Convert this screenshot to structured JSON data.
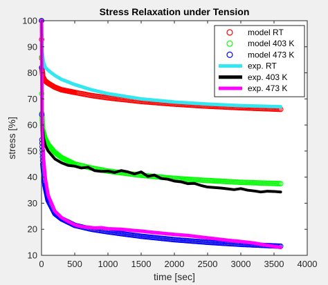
{
  "chart_data": {
    "type": "line",
    "title": "Stress Relaxation under Tension",
    "xlabel": "time [sec]",
    "ylabel": "stress [%]",
    "xlim": [
      0,
      4000
    ],
    "ylim": [
      10,
      100
    ],
    "xticks": [
      "0",
      "500",
      "1000",
      "1500",
      "2000",
      "2500",
      "3000",
      "3500",
      "4000"
    ],
    "yticks": [
      "10",
      "20",
      "30",
      "40",
      "50",
      "60",
      "70",
      "80",
      "90",
      "100"
    ],
    "grid": false,
    "legend_position": "top-right",
    "series": [
      {
        "name": "model RT",
        "style": "marker-o",
        "color": "#ff0000",
        "x": [
          0,
          5,
          20,
          50,
          100,
          200,
          300,
          500,
          750,
          1000,
          1500,
          2000,
          2500,
          3000,
          3600
        ],
        "y": [
          100,
          82,
          78.5,
          77,
          76,
          74.5,
          73.5,
          72.5,
          71.3,
          70.4,
          69,
          68,
          67.2,
          66.6,
          66
        ]
      },
      {
        "name": "model 403 K",
        "style": "marker-o",
        "color": "#00ff00",
        "x": [
          0,
          5,
          20,
          50,
          100,
          200,
          300,
          500,
          750,
          1000,
          1500,
          2000,
          2500,
          3000,
          3600
        ],
        "y": [
          100,
          65,
          58,
          55,
          52.5,
          49.5,
          47.5,
          45,
          43.5,
          42.3,
          40.7,
          39.5,
          38.7,
          38,
          37.5
        ]
      },
      {
        "name": "model 473 K",
        "style": "marker-o",
        "color": "#0000ff",
        "x": [
          0,
          5,
          20,
          50,
          100,
          200,
          300,
          500,
          750,
          1000,
          1500,
          2000,
          2500,
          3000,
          3600
        ],
        "y": [
          100,
          55,
          45,
          37,
          31,
          26,
          24,
          21.5,
          20,
          19,
          17.3,
          16,
          15,
          14.2,
          13.5
        ]
      },
      {
        "name": "exp. RT",
        "style": "line",
        "color": "#33e6f0",
        "x": [
          0,
          10,
          30,
          60,
          100,
          200,
          300,
          500,
          750,
          1000,
          1500,
          2000,
          2500,
          3000,
          3600
        ],
        "y": [
          100,
          88,
          84,
          82,
          81,
          79,
          77.5,
          75.5,
          73.5,
          72,
          70,
          68.8,
          68,
          67.4,
          67
        ]
      },
      {
        "name": "exp. 403 K",
        "style": "line",
        "color": "#000000",
        "x": [
          0,
          10,
          30,
          60,
          100,
          200,
          300,
          400,
          500,
          600,
          700,
          800,
          900,
          1000,
          1100,
          1200,
          1300,
          1400,
          1500,
          1600,
          1700,
          1800,
          1900,
          2000,
          2100,
          2200,
          2300,
          2400,
          2500,
          2600,
          2700,
          2800,
          2900,
          3000,
          3100,
          3200,
          3300,
          3400,
          3500,
          3600
        ],
        "y": [
          100,
          62,
          55,
          52,
          50,
          47,
          45.5,
          44.5,
          44.2,
          43.5,
          43.8,
          42.5,
          42.2,
          42.3,
          41.8,
          42.5,
          42,
          41.2,
          42,
          40.3,
          40.8,
          39.5,
          39.2,
          38.5,
          38.2,
          37.5,
          37.6,
          36.8,
          36.2,
          36,
          35.8,
          35.5,
          35.2,
          35.6,
          35,
          34.7,
          34.3,
          34.6,
          34.5,
          34.3
        ]
      },
      {
        "name": "exp. 473 K",
        "style": "line",
        "color": "#ff00ff",
        "x": [
          0,
          10,
          30,
          60,
          100,
          200,
          300,
          400,
          500,
          600,
          700,
          800,
          900,
          1000,
          1200,
          1400,
          1500,
          1600,
          1800,
          2000,
          2200,
          2400,
          2600,
          2800,
          3000,
          3200,
          3400,
          3600
        ],
        "y": [
          100,
          57,
          47,
          39,
          33,
          27,
          24.5,
          23,
          21.7,
          21,
          20.8,
          20.5,
          20.6,
          20.2,
          20,
          19.5,
          19.3,
          19,
          18.5,
          18,
          17.6,
          17,
          16.4,
          15.8,
          15.3,
          14.7,
          13.8,
          13
        ]
      }
    ]
  }
}
